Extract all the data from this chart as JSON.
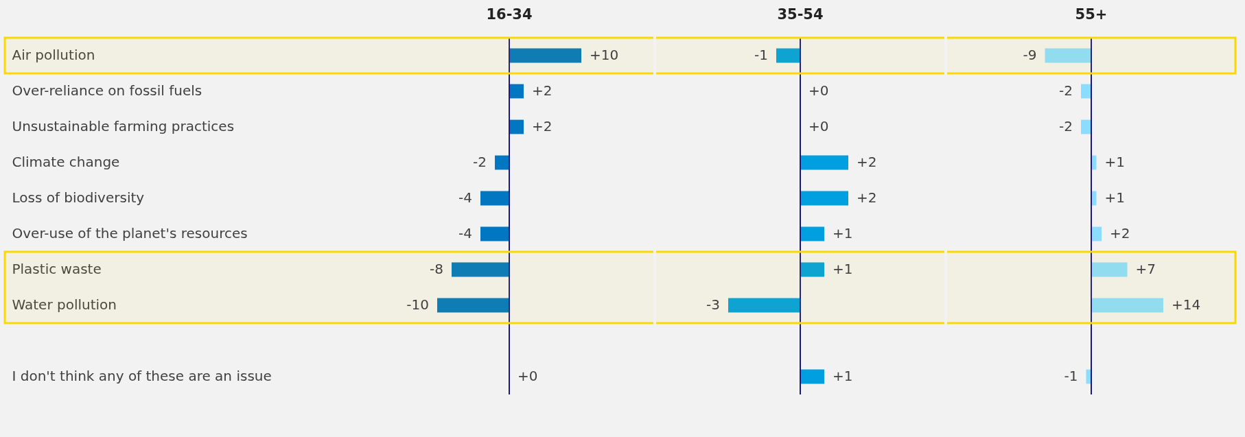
{
  "chart_data": [
    {
      "type": "bar",
      "orientation": "horizontal",
      "title": "16-34",
      "categories": [
        "Air pollution",
        "Over-reliance on fossil fuels",
        "Unsustainable farming practices",
        "Climate change",
        "Loss of biodiversity",
        "Over-use of the planet's resources",
        "Plastic waste",
        "Water pollution",
        null,
        "I don't think any of these are an issue"
      ],
      "values": [
        10,
        2,
        2,
        -2,
        -4,
        -4,
        -8,
        -10,
        null,
        0
      ],
      "value_labels": [
        "+10",
        "+2",
        "+2",
        "-2",
        "-4",
        "-4",
        "-8",
        "-10",
        null,
        "+0"
      ],
      "color": "#0077c0",
      "tick_labels": "y",
      "ref_lines": [
        {
          "axis": "x",
          "value": 0,
          "color": "#1a1a80"
        }
      ],
      "bands": [
        {
          "axis": "y",
          "from": "Air pollution",
          "to": "Air pollution",
          "color": "#ffd700"
        },
        {
          "axis": "y",
          "from": "Plastic waste",
          "to": "Water pollution",
          "color": "#ffd700"
        }
      ]
    },
    {
      "type": "bar",
      "orientation": "horizontal",
      "title": "35-54",
      "categories": [
        "Air pollution",
        "Over-reliance on fossil fuels",
        "Unsustainable farming practices",
        "Climate change",
        "Loss of biodiversity",
        "Over-use of the planet's resources",
        "Plastic waste",
        "Water pollution",
        null,
        "I don't think any of these are an issue"
      ],
      "values": [
        -1,
        0,
        0,
        2,
        2,
        1,
        1,
        -3,
        null,
        1
      ],
      "value_labels": [
        "-1",
        "+0",
        "+0",
        "+2",
        "+2",
        "+1",
        "+1",
        "-3",
        null,
        "+1"
      ],
      "color": "#00a0e0",
      "tick_labels": false,
      "ref_lines": [
        {
          "axis": "x",
          "value": 0,
          "color": "#1a1a80"
        }
      ],
      "bands": [
        {
          "axis": "y",
          "from": "Air pollution",
          "to": "Air pollution",
          "color": "#ffd700"
        },
        {
          "axis": "y",
          "from": "Plastic waste",
          "to": "Water pollution",
          "color": "#ffd700"
        }
      ]
    },
    {
      "type": "bar",
      "orientation": "horizontal",
      "title": "55+",
      "categories": [
        "Air pollution",
        "Over-reliance on fossil fuels",
        "Unsustainable farming practices",
        "Climate change",
        "Loss of biodiversity",
        "Over-use of the planet's resources",
        "Plastic waste",
        "Water pollution",
        null,
        "I don't think any of these are an issue"
      ],
      "values": [
        -9,
        -2,
        -2,
        1,
        1,
        2,
        7,
        14,
        null,
        -1
      ],
      "value_labels": [
        "-9",
        "-2",
        "-2",
        "+1",
        "+1",
        "+2",
        "+7",
        "+14",
        null,
        "-1"
      ],
      "color": "#8cdcff",
      "tick_labels": false,
      "ref_lines": [
        {
          "axis": "x",
          "value": 0,
          "color": "#1a1a80"
        }
      ],
      "bands": [
        {
          "axis": "y",
          "from": "Air pollution",
          "to": "Air pollution",
          "color": "#ffd700"
        },
        {
          "axis": "y",
          "from": "Plastic waste",
          "to": "Water pollution",
          "color": "#ffd700"
        }
      ]
    }
  ]
}
